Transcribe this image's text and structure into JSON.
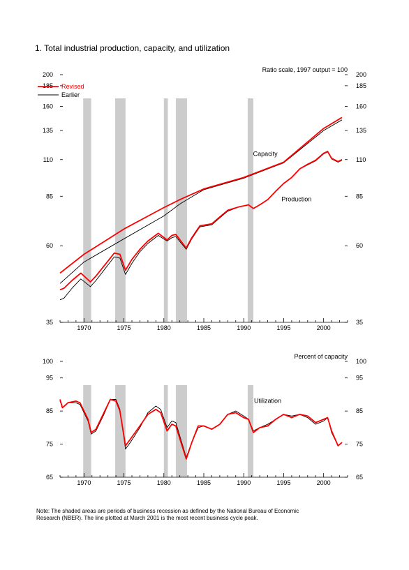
{
  "page_title": "1. Total industrial production, capacity, and utilization",
  "note_line1": "Note: The shaded areas are periods of business recession as defined by the National Bureau of Economic",
  "note_line2": "Research (NBER). The line plotted at March 2001 is the most recent business cycle peak.",
  "colors": {
    "revised": "#ff0000",
    "earlier": "#000000",
    "recession": "#cccccc"
  },
  "recessions": [
    [
      1969.9,
      1970.9
    ],
    [
      1973.9,
      1975.2
    ],
    [
      1980.0,
      1980.5
    ],
    [
      1981.5,
      1982.9
    ],
    [
      1990.5,
      1991.2
    ]
  ],
  "chart_data": [
    {
      "type": "line",
      "title": "",
      "scale_note": "Ratio scale, 1997 output = 100",
      "y_scale": "log",
      "xlim": [
        1967,
        2003
      ],
      "ylim": [
        35,
        200
      ],
      "x_ticks": [
        1970,
        1975,
        1980,
        1985,
        1990,
        1995,
        2000
      ],
      "y_ticks": [
        35,
        60,
        85,
        110,
        135,
        160,
        185,
        200
      ],
      "grid": false,
      "legend": {
        "position": "top-left",
        "entries": [
          "Revised",
          "Earlier"
        ]
      },
      "annotations": [
        {
          "text": "Capacity",
          "x": 1992.7,
          "y": 113
        },
        {
          "text": "Production",
          "x": 1996.6,
          "y": 82
        }
      ],
      "series": [
        {
          "name": "Capacity (Revised)",
          "x": [
            1967,
            1970,
            1975,
            1980,
            1982,
            1985,
            1990,
            1995,
            2000,
            2002.3
          ],
          "y": [
            49.5,
            56.5,
            67.5,
            78.5,
            83,
            89.5,
            97,
            108,
            137,
            148
          ]
        },
        {
          "name": "Capacity (Earlier)",
          "x": [
            1967,
            1970,
            1975,
            1980,
            1982,
            1985,
            1990,
            1995,
            2000,
            2002.3
          ],
          "y": [
            46,
            53.5,
            63,
            74,
            80.5,
            89,
            96.5,
            107.5,
            135,
            145.5
          ]
        },
        {
          "name": "Production (Revised)",
          "x": [
            1967,
            1967.5,
            1968.5,
            1969.6,
            1970.8,
            1971.5,
            1972.5,
            1973.8,
            1974.5,
            1975.2,
            1976,
            1977,
            1978,
            1979.3,
            1980.4,
            1981,
            1981.5,
            1982.8,
            1983.5,
            1984.5,
            1986,
            1987,
            1988,
            1989.5,
            1990.6,
            1991.2,
            1992,
            1993,
            1994,
            1995,
            1996,
            1997,
            1998,
            1999,
            2000,
            2000.5,
            2001,
            2001.8,
            2002.3
          ],
          "y": [
            44,
            44.5,
            47,
            49.5,
            46.5,
            48.5,
            52,
            57,
            56.5,
            50.5,
            54.5,
            58.5,
            62,
            65.5,
            62.5,
            64.5,
            65,
            59,
            63.5,
            69,
            70,
            73.5,
            77,
            79,
            80,
            78,
            80,
            83,
            88,
            93,
            97,
            103,
            106.5,
            109.5,
            115,
            116.5,
            111,
            108.5,
            110
          ]
        },
        {
          "name": "Production (Earlier)",
          "x": [
            1967,
            1967.5,
            1968.5,
            1969.6,
            1970.8,
            1971.5,
            1972.5,
            1973.8,
            1974.5,
            1975.2,
            1976,
            1977,
            1978,
            1979.3,
            1980.4,
            1981,
            1981.5,
            1982.8,
            1983.5,
            1984.5,
            1986,
            1987,
            1988,
            1989.5,
            1990.6,
            1991.2,
            1992,
            1993,
            1994,
            1995,
            1996,
            1997,
            1998,
            1999,
            2000,
            2000.5,
            2001,
            2001.8,
            2002.3
          ],
          "y": [
            41,
            41.5,
            44.5,
            47.5,
            45,
            47,
            50.5,
            55.5,
            55,
            49,
            53,
            57.5,
            61,
            64.5,
            62,
            63.5,
            64,
            58.5,
            63,
            68.5,
            69.5,
            73,
            76.5,
            79,
            80,
            78,
            80,
            83,
            88,
            93,
            97,
            103,
            106,
            109,
            114.5,
            116,
            110.5,
            108,
            109.5
          ]
        }
      ]
    },
    {
      "type": "line",
      "title": "",
      "scale_note": "Percent of capacity",
      "xlim": [
        1967,
        2003
      ],
      "ylim": [
        65,
        100
      ],
      "x_ticks": [
        1970,
        1975,
        1980,
        1985,
        1990,
        1995,
        2000
      ],
      "y_ticks": [
        65,
        75,
        85,
        95,
        100
      ],
      "grid": false,
      "annotations": [
        {
          "text": "Utilization",
          "x": 1993,
          "y": 87.5
        }
      ],
      "series": [
        {
          "name": "Utilization (Revised)",
          "x": [
            1967,
            1967.3,
            1968,
            1969,
            1969.5,
            1970.5,
            1970.9,
            1971.5,
            1972.5,
            1973.3,
            1974,
            1974.5,
            1975.2,
            1975.8,
            1977,
            1978,
            1979,
            1979.6,
            1980.4,
            1981,
            1981.5,
            1982.8,
            1983.5,
            1984.3,
            1985,
            1986,
            1987,
            1988,
            1989,
            1990,
            1990.6,
            1991.2,
            1992,
            1993,
            1994,
            1995,
            1996,
            1997,
            1998,
            1999,
            2000,
            2000.5,
            2001,
            2001.8,
            2002.3
          ],
          "y": [
            88.5,
            86,
            87.5,
            88,
            87.5,
            82.5,
            78.5,
            79.5,
            84.5,
            88.5,
            88,
            85,
            74.5,
            76.5,
            80.5,
            84,
            85.5,
            84.5,
            79,
            81,
            80.5,
            70.5,
            75.5,
            80.5,
            80.5,
            79.5,
            81,
            84,
            84.5,
            83,
            82.5,
            78.5,
            80,
            80.5,
            82.5,
            84,
            83,
            84,
            83.5,
            81.5,
            82.5,
            83,
            79,
            74.5,
            75.5
          ]
        },
        {
          "name": "Utilization (Earlier)",
          "x": [
            1967,
            1967.3,
            1968,
            1969,
            1969.5,
            1970.5,
            1970.9,
            1971.5,
            1972.5,
            1973.3,
            1974,
            1974.5,
            1975.2,
            1975.8,
            1977,
            1978,
            1979,
            1979.6,
            1980.4,
            1981,
            1981.5,
            1982.8,
            1983.5,
            1984.3,
            1985,
            1986,
            1987,
            1988,
            1989,
            1990,
            1990.6,
            1991.2,
            1992,
            1993,
            1994,
            1995,
            1996,
            1997,
            1998,
            1999,
            2000,
            2000.5,
            2001,
            2001.8,
            2002.3
          ],
          "y": [
            88,
            86,
            87.5,
            87.5,
            87,
            82,
            78,
            79,
            84,
            88.5,
            88.5,
            85.5,
            73.5,
            75.5,
            80,
            84.5,
            86.5,
            85.5,
            80,
            82,
            81.5,
            71,
            75.5,
            80,
            80.5,
            79.5,
            81,
            84,
            85,
            83.5,
            82.5,
            79,
            80,
            81,
            82.5,
            84,
            83.5,
            84,
            83,
            81,
            82,
            83,
            78.5,
            74.5,
            75.5
          ]
        }
      ]
    }
  ]
}
